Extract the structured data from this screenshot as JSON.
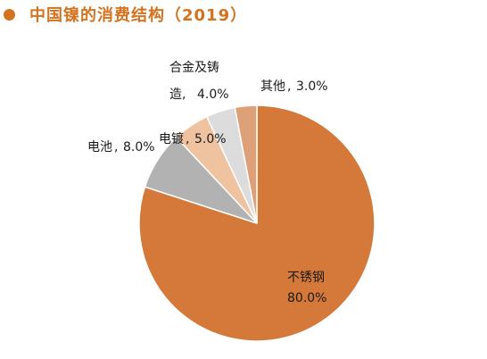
{
  "title": "中国镍的消费结构（2019）",
  "chart_data": {
    "type": "pie",
    "title": "中国镍的消费结构（2019）",
    "slices": [
      {
        "label": "不锈钢",
        "value_text": "80.0%",
        "value": 80.0,
        "color": "#d4793a"
      },
      {
        "label": "电池",
        "value_text": "8.0%",
        "value": 8.0,
        "color": "#b2b2b2"
      },
      {
        "label": "电镀",
        "value_text": "5.0%",
        "value": 5.0,
        "color": "#efc2a0"
      },
      {
        "label": "合金及铸造",
        "value_text": "4.0%",
        "value": 4.0,
        "color": "#dcdcdc"
      },
      {
        "label": "其他",
        "value_text": "3.0%",
        "value": 3.0,
        "color": "#dea078"
      }
    ],
    "start_angle_deg": 0,
    "direction": "counterclockwise",
    "legend": "none"
  }
}
